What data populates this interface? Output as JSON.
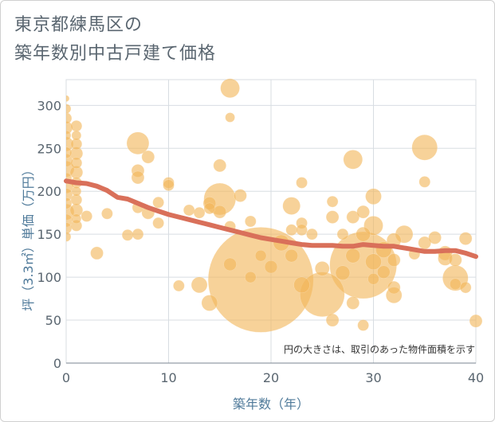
{
  "title_line1": "東京都練馬区の",
  "title_line2": "築年数別中古戸建て価格",
  "chart_data": {
    "type": "scatter",
    "xlabel": "築年数（年）",
    "ylabel": "坪（3.3㎡）単価（万円）",
    "xlim": [
      0,
      40
    ],
    "ylim": [
      0,
      330
    ],
    "xticks": [
      "0",
      "10",
      "20",
      "30",
      "40"
    ],
    "yticks": [
      "0",
      "50",
      "100",
      "150",
      "200",
      "250",
      "300"
    ],
    "xtick_values": [
      0,
      10,
      20,
      30,
      40
    ],
    "ytick_values": [
      0,
      50,
      100,
      150,
      200,
      250,
      300
    ],
    "grid": true,
    "note": "円の大きさは、取引のあった物件面積を示す",
    "bubble_color": "#f2b75a",
    "trend_color": "#d9705a",
    "points": [
      {
        "x": 0,
        "y": 308,
        "r": 4
      },
      {
        "x": 0,
        "y": 296,
        "r": 6
      },
      {
        "x": 0,
        "y": 285,
        "r": 7
      },
      {
        "x": 0,
        "y": 274,
        "r": 8
      },
      {
        "x": 0,
        "y": 265,
        "r": 6
      },
      {
        "x": 0,
        "y": 255,
        "r": 9
      },
      {
        "x": 0,
        "y": 245,
        "r": 7
      },
      {
        "x": 0,
        "y": 236,
        "r": 8
      },
      {
        "x": 0,
        "y": 226,
        "r": 10
      },
      {
        "x": 0,
        "y": 215,
        "r": 7
      },
      {
        "x": 0,
        "y": 206,
        "r": 9
      },
      {
        "x": 0,
        "y": 196,
        "r": 8
      },
      {
        "x": 0,
        "y": 186,
        "r": 7
      },
      {
        "x": 0,
        "y": 176,
        "r": 10
      },
      {
        "x": 0,
        "y": 166,
        "r": 8
      },
      {
        "x": 0,
        "y": 157,
        "r": 7
      },
      {
        "x": 0,
        "y": 147,
        "r": 6
      },
      {
        "x": 1,
        "y": 276,
        "r": 7
      },
      {
        "x": 1,
        "y": 265,
        "r": 6
      },
      {
        "x": 1,
        "y": 255,
        "r": 7
      },
      {
        "x": 1,
        "y": 244,
        "r": 8
      },
      {
        "x": 1,
        "y": 233,
        "r": 7
      },
      {
        "x": 1,
        "y": 222,
        "r": 8
      },
      {
        "x": 1,
        "y": 210,
        "r": 7
      },
      {
        "x": 1,
        "y": 200,
        "r": 6
      },
      {
        "x": 1,
        "y": 190,
        "r": 7
      },
      {
        "x": 1,
        "y": 178,
        "r": 8
      },
      {
        "x": 1,
        "y": 168,
        "r": 6
      },
      {
        "x": 1,
        "y": 160,
        "r": 7
      },
      {
        "x": 2,
        "y": 171,
        "r": 7
      },
      {
        "x": 3,
        "y": 128,
        "r": 8
      },
      {
        "x": 4,
        "y": 174,
        "r": 7
      },
      {
        "x": 6,
        "y": 149,
        "r": 7
      },
      {
        "x": 7,
        "y": 256,
        "r": 14
      },
      {
        "x": 7,
        "y": 224,
        "r": 8
      },
      {
        "x": 7,
        "y": 216,
        "r": 8
      },
      {
        "x": 7,
        "y": 181,
        "r": 7
      },
      {
        "x": 7,
        "y": 150,
        "r": 7
      },
      {
        "x": 8,
        "y": 240,
        "r": 8
      },
      {
        "x": 8,
        "y": 175,
        "r": 8
      },
      {
        "x": 9,
        "y": 187,
        "r": 7
      },
      {
        "x": 9,
        "y": 163,
        "r": 7
      },
      {
        "x": 10,
        "y": 210,
        "r": 7
      },
      {
        "x": 10,
        "y": 207,
        "r": 7
      },
      {
        "x": 11,
        "y": 90,
        "r": 7
      },
      {
        "x": 12,
        "y": 178,
        "r": 7
      },
      {
        "x": 13,
        "y": 91,
        "r": 10
      },
      {
        "x": 13,
        "y": 175,
        "r": 7
      },
      {
        "x": 14,
        "y": 186,
        "r": 8
      },
      {
        "x": 14,
        "y": 180,
        "r": 7
      },
      {
        "x": 14,
        "y": 70,
        "r": 10
      },
      {
        "x": 15,
        "y": 230,
        "r": 8
      },
      {
        "x": 15,
        "y": 191,
        "r": 20
      },
      {
        "x": 15,
        "y": 176,
        "r": 8
      },
      {
        "x": 16,
        "y": 320,
        "r": 12
      },
      {
        "x": 16,
        "y": 286,
        "r": 6
      },
      {
        "x": 16,
        "y": 159,
        "r": 7
      },
      {
        "x": 16,
        "y": 115,
        "r": 8
      },
      {
        "x": 17,
        "y": 195,
        "r": 8
      },
      {
        "x": 18,
        "y": 165,
        "r": 7
      },
      {
        "x": 18,
        "y": 100,
        "r": 7
      },
      {
        "x": 19,
        "y": 97,
        "r": 66
      },
      {
        "x": 19,
        "y": 125,
        "r": 7
      },
      {
        "x": 20,
        "y": 112,
        "r": 8
      },
      {
        "x": 21,
        "y": 140,
        "r": 10
      },
      {
        "x": 22,
        "y": 183,
        "r": 11
      },
      {
        "x": 22,
        "y": 125,
        "r": 8
      },
      {
        "x": 22,
        "y": 155,
        "r": 7
      },
      {
        "x": 23,
        "y": 210,
        "r": 7
      },
      {
        "x": 23,
        "y": 163,
        "r": 7
      },
      {
        "x": 23,
        "y": 155,
        "r": 7
      },
      {
        "x": 23,
        "y": 91,
        "r": 10
      },
      {
        "x": 24,
        "y": 150,
        "r": 7
      },
      {
        "x": 25,
        "y": 110,
        "r": 9
      },
      {
        "x": 25,
        "y": 80,
        "r": 28
      },
      {
        "x": 26,
        "y": 188,
        "r": 7
      },
      {
        "x": 26,
        "y": 170,
        "r": 8
      },
      {
        "x": 26,
        "y": 50,
        "r": 8
      },
      {
        "x": 27,
        "y": 105,
        "r": 9
      },
      {
        "x": 27,
        "y": 150,
        "r": 7
      },
      {
        "x": 28,
        "y": 237,
        "r": 12
      },
      {
        "x": 28,
        "y": 170,
        "r": 8
      },
      {
        "x": 28,
        "y": 70,
        "r": 8
      },
      {
        "x": 28,
        "y": 125,
        "r": 9
      },
      {
        "x": 29,
        "y": 176,
        "r": 8
      },
      {
        "x": 29,
        "y": 150,
        "r": 9
      },
      {
        "x": 29,
        "y": 114,
        "r": 42
      },
      {
        "x": 29,
        "y": 44,
        "r": 7
      },
      {
        "x": 30,
        "y": 194,
        "r": 10
      },
      {
        "x": 30,
        "y": 160,
        "r": 12
      },
      {
        "x": 30,
        "y": 118,
        "r": 10
      },
      {
        "x": 30,
        "y": 98,
        "r": 7
      },
      {
        "x": 31,
        "y": 132,
        "r": 10
      },
      {
        "x": 31,
        "y": 106,
        "r": 8
      },
      {
        "x": 32,
        "y": 143,
        "r": 9
      },
      {
        "x": 32,
        "y": 120,
        "r": 8
      },
      {
        "x": 32,
        "y": 88,
        "r": 8
      },
      {
        "x": 32,
        "y": 79,
        "r": 10
      },
      {
        "x": 33,
        "y": 150,
        "r": 11
      },
      {
        "x": 34,
        "y": 127,
        "r": 7
      },
      {
        "x": 35,
        "y": 251,
        "r": 16
      },
      {
        "x": 35,
        "y": 211,
        "r": 7
      },
      {
        "x": 35,
        "y": 140,
        "r": 8
      },
      {
        "x": 36,
        "y": 146,
        "r": 8
      },
      {
        "x": 37,
        "y": 128,
        "r": 9
      },
      {
        "x": 37,
        "y": 122,
        "r": 9
      },
      {
        "x": 38,
        "y": 120,
        "r": 8
      },
      {
        "x": 38,
        "y": 99,
        "r": 16
      },
      {
        "x": 38,
        "y": 92,
        "r": 7
      },
      {
        "x": 39,
        "y": 145,
        "r": 8
      },
      {
        "x": 39,
        "y": 88,
        "r": 7
      },
      {
        "x": 40,
        "y": 49,
        "r": 8
      }
    ],
    "trend": {
      "x": [
        0,
        1,
        2,
        3,
        4,
        5,
        6,
        7,
        8,
        9,
        10,
        11,
        12,
        13,
        14,
        15,
        16,
        17,
        18,
        19,
        20,
        21,
        22,
        23,
        24,
        25,
        26,
        27,
        28,
        29,
        30,
        31,
        32,
        33,
        34,
        35,
        36,
        37,
        38,
        39,
        40
      ],
      "y": [
        212,
        210,
        209,
        206,
        201,
        193,
        191,
        186,
        181,
        177,
        173,
        170,
        167,
        164,
        161,
        158,
        155,
        152,
        149,
        146,
        144,
        142,
        140,
        138,
        137,
        137,
        137,
        136,
        136,
        138,
        137,
        136,
        136,
        134,
        132,
        130,
        130,
        131,
        131,
        128,
        124
      ]
    }
  }
}
